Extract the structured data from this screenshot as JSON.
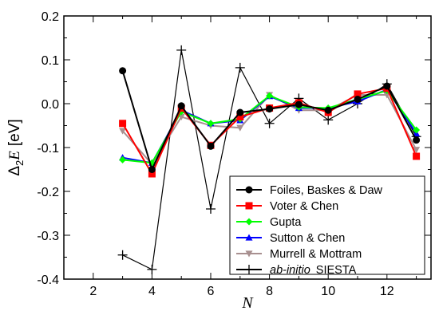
{
  "chart_data": {
    "type": "line",
    "xlabel": "N",
    "ylabel_prefix": "Δ",
    "ylabel_sub": "2",
    "ylabel_var": "E",
    "ylabel_unit": "[eV]",
    "xlim": [
      1,
      13.5
    ],
    "ylim": [
      -0.4,
      0.2
    ],
    "xticks": [
      2,
      4,
      6,
      8,
      10,
      12
    ],
    "yticks": [
      -0.4,
      -0.3,
      -0.2,
      -0.1,
      0.0,
      0.1,
      0.2
    ],
    "ytick_labels": [
      "-0.4",
      "-0.3",
      "-0.2",
      "-0.1",
      "0.0",
      "0.1",
      "0.2"
    ],
    "legend_position": "bottom-right",
    "x": [
      3,
      4,
      5,
      6,
      7,
      8,
      9,
      10,
      11,
      12,
      13
    ],
    "series": [
      {
        "name": "Foiles, Baskes & Daw",
        "color": "#000000",
        "marker": "circle",
        "values": [
          0.075,
          -0.15,
          -0.005,
          -0.097,
          -0.02,
          -0.012,
          -0.002,
          -0.015,
          0.01,
          0.04,
          -0.083
        ]
      },
      {
        "name": "Voter & Chen",
        "color": "#ff0000",
        "marker": "square",
        "values": [
          -0.045,
          -0.16,
          -0.01,
          -0.095,
          -0.03,
          -0.01,
          0.002,
          -0.02,
          0.022,
          0.035,
          -0.12
        ]
      },
      {
        "name": "Gupta",
        "color": "#00ff00",
        "marker": "diamond",
        "values": [
          -0.128,
          -0.135,
          -0.018,
          -0.045,
          -0.035,
          0.018,
          -0.008,
          -0.01,
          0.01,
          0.03,
          -0.06
        ]
      },
      {
        "name": "Sutton & Chen",
        "color": "#0000ff",
        "marker": "triangle-up",
        "values": [
          -0.123,
          -0.135,
          -0.015,
          -0.045,
          -0.038,
          0.017,
          -0.01,
          -0.01,
          0.005,
          0.032,
          -0.068
        ]
      },
      {
        "name": "Murrell & Mottram",
        "color": "#a89090",
        "marker": "triangle-down",
        "values": [
          -0.062,
          -0.138,
          -0.03,
          -0.05,
          -0.055,
          0.02,
          -0.015,
          -0.015,
          0.02,
          0.02,
          -0.105
        ]
      },
      {
        "name_italic": "ab-initio",
        "name": "SIESTA",
        "color": "#000000",
        "marker": "plus",
        "values": [
          -0.345,
          -0.378,
          0.122,
          -0.24,
          0.082,
          -0.045,
          0.012,
          -0.037,
          0.0,
          0.045,
          -0.075
        ]
      }
    ]
  }
}
